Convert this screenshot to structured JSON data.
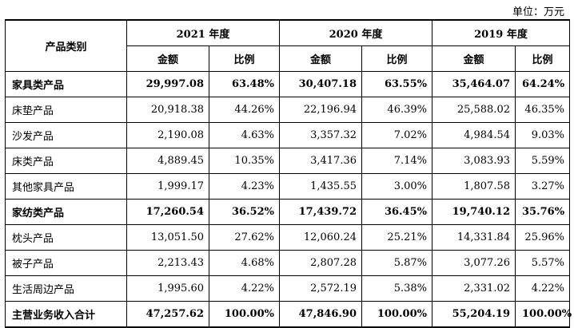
{
  "unit_label": "单位：万元",
  "header": {
    "category": "产品类别",
    "years": [
      "2021 年度",
      "2020 年度",
      "2019 年度"
    ],
    "amount": "金额",
    "ratio": "比例"
  },
  "rows": [
    {
      "name": "家具类产品",
      "bold": true,
      "cells": [
        "29,997.08",
        "63.48%",
        "30,407.18",
        "63.55%",
        "35,464.07",
        "64.24%"
      ]
    },
    {
      "name": "床垫产品",
      "bold": false,
      "cells": [
        "20,918.38",
        "44.26%",
        "22,196.94",
        "46.39%",
        "25,588.02",
        "46.35%"
      ]
    },
    {
      "name": "沙发产品",
      "bold": false,
      "cells": [
        "2,190.08",
        "4.63%",
        "3,357.32",
        "7.02%",
        "4,984.54",
        "9.03%"
      ]
    },
    {
      "name": "床类产品",
      "bold": false,
      "cells": [
        "4,889.45",
        "10.35%",
        "3,417.36",
        "7.14%",
        "3,083.93",
        "5.59%"
      ]
    },
    {
      "name": "其他家具产品",
      "bold": false,
      "cells": [
        "1,999.17",
        "4.23%",
        "1,435.55",
        "3.00%",
        "1,807.58",
        "3.27%"
      ]
    },
    {
      "name": "家纺类产品",
      "bold": true,
      "cells": [
        "17,260.54",
        "36.52%",
        "17,439.72",
        "36.45%",
        "19,740.12",
        "35.76%"
      ]
    },
    {
      "name": "枕头产品",
      "bold": false,
      "cells": [
        "13,051.50",
        "27.62%",
        "12,060.24",
        "25.21%",
        "14,331.84",
        "25.96%"
      ]
    },
    {
      "name": "被子产品",
      "bold": false,
      "cells": [
        "2,213.43",
        "4.68%",
        "2,807.28",
        "5.87%",
        "3,077.26",
        "5.57%"
      ]
    },
    {
      "name": "生活周边产品",
      "bold": false,
      "cells": [
        "1,995.60",
        "4.22%",
        "2,572.19",
        "5.38%",
        "2,331.02",
        "4.22%"
      ]
    },
    {
      "name": "主营业务收入合计",
      "bold": true,
      "cells": [
        "47,257.62",
        "100.00%",
        "47,846.90",
        "100.00%",
        "55,204.19",
        "100.00%"
      ]
    }
  ]
}
